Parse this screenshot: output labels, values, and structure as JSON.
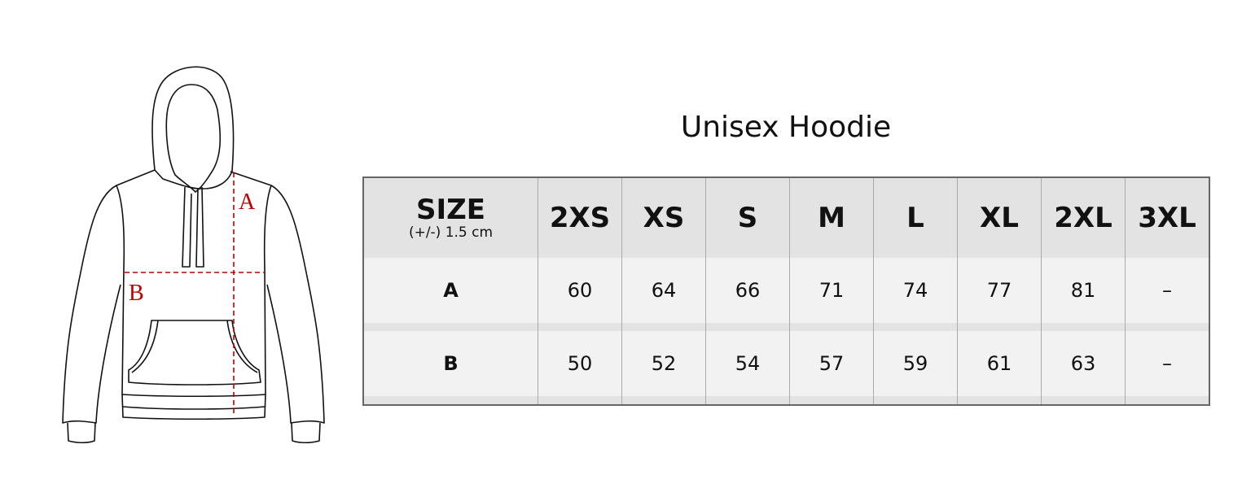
{
  "title": "Unisex Hoodie",
  "diagram": {
    "label_a": "A",
    "label_b": "B"
  },
  "table": {
    "size_header": "SIZE",
    "tolerance": "(+/-) 1.5 cm",
    "sizes": [
      "2XS",
      "XS",
      "S",
      "M",
      "L",
      "XL",
      "2XL",
      "3XL"
    ],
    "rows": [
      {
        "label": "A",
        "values": [
          "60",
          "64",
          "66",
          "71",
          "74",
          "77",
          "81",
          "–"
        ]
      },
      {
        "label": "B",
        "values": [
          "50",
          "52",
          "54",
          "57",
          "59",
          "61",
          "63",
          "–"
        ]
      }
    ]
  },
  "colors": {
    "accent": "#c00000",
    "header_bg": "#e3e3e3",
    "row_bg": "#f2f2f2"
  }
}
